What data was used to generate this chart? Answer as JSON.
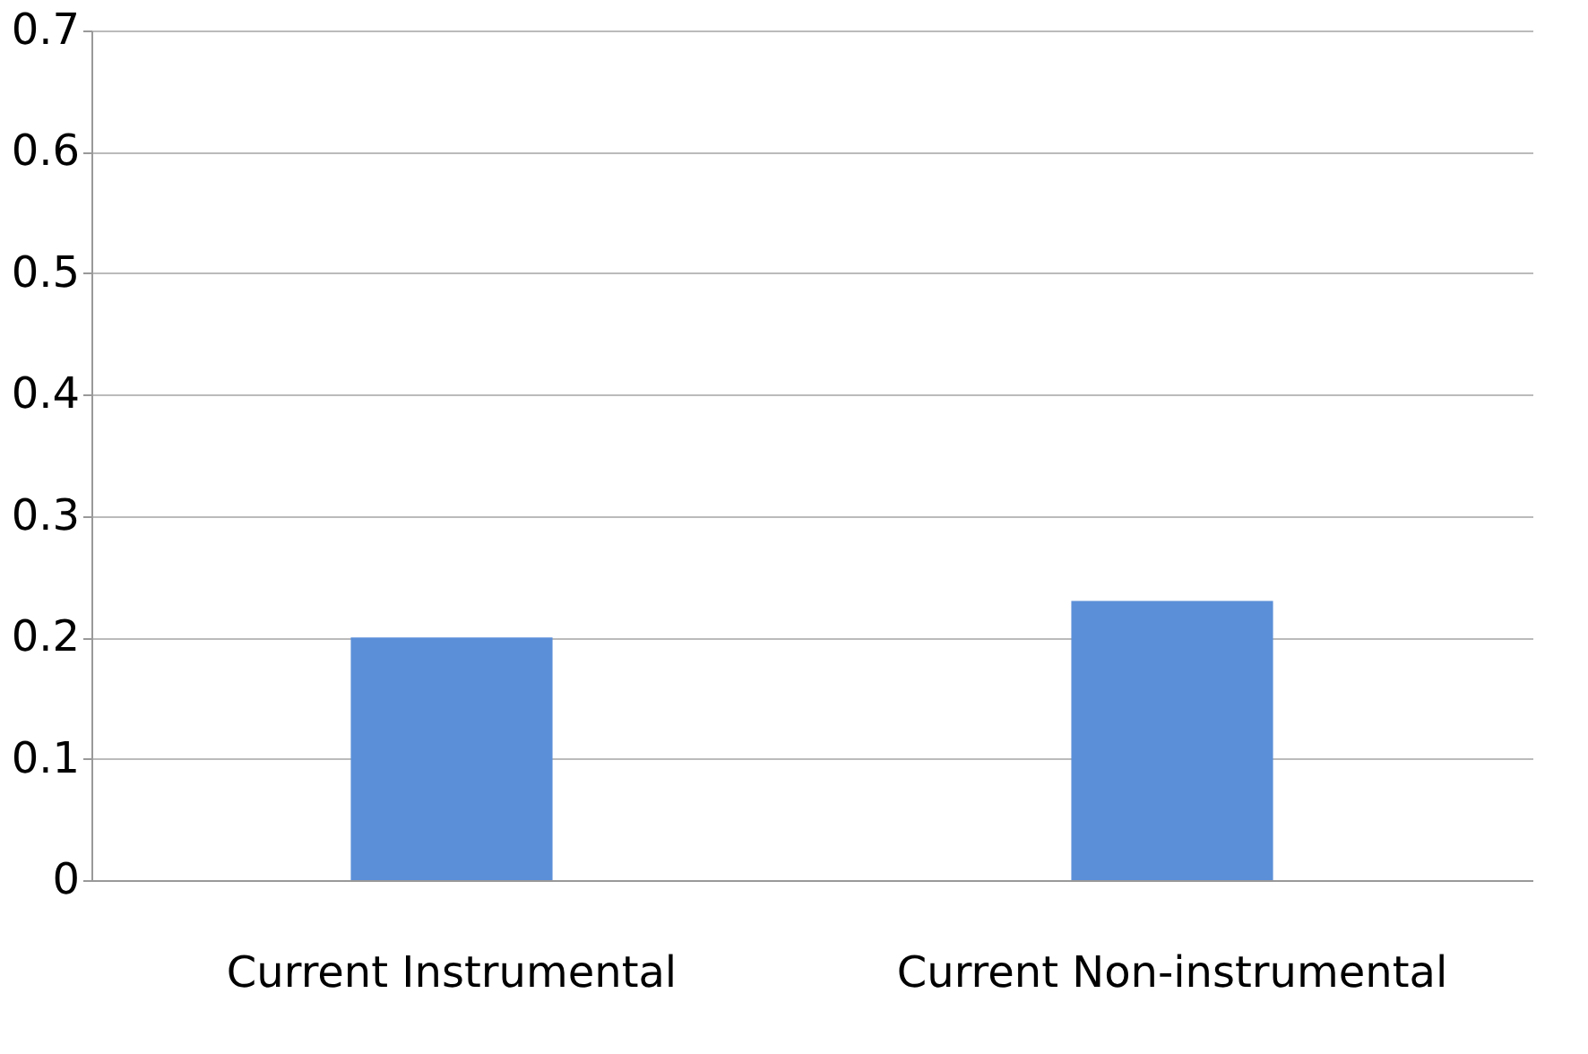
{
  "chart_data": {
    "type": "bar",
    "categories": [
      "Current Instrumental",
      "Current Non-instrumental"
    ],
    "values": [
      0.2,
      0.23
    ],
    "color": "#5b8fd8",
    "ylim": [
      0,
      0.7
    ],
    "yticks": [
      0,
      0.1,
      0.2,
      0.3,
      0.4,
      0.5,
      0.6,
      0.7
    ],
    "grid": "y"
  }
}
